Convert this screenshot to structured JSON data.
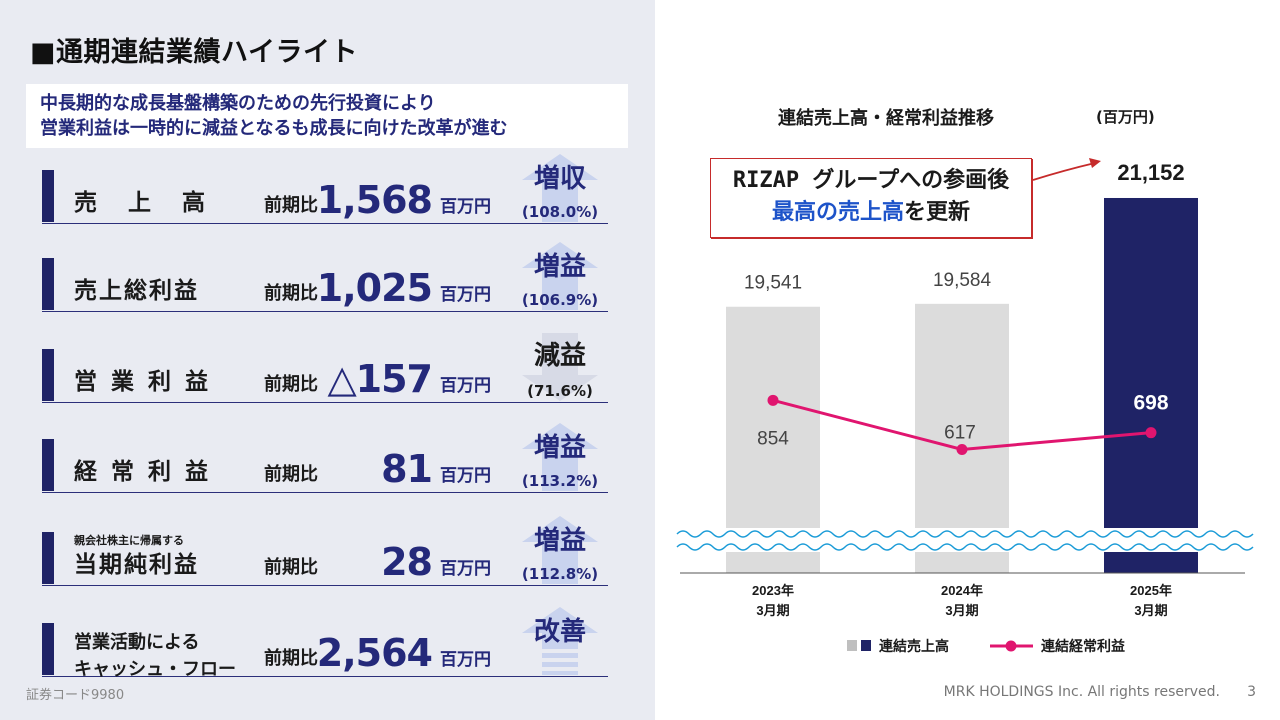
{
  "page_title": "■通期連結業績ハイライト",
  "subtitle": {
    "line1": "中長期的な成長基盤構築のための先行投資により",
    "line2": "営業利益は一時的に減益となるも成長に向けた改革が進む"
  },
  "comparison_label": "前期比",
  "unit_label": "百万円",
  "rows": [
    {
      "label": "売上高",
      "value": "1,568",
      "badge": "増収",
      "pct": "(108.0%)",
      "trend": "up"
    },
    {
      "label": "売上総利益",
      "value": "1,025",
      "badge": "増益",
      "pct": "(106.9%)",
      "trend": "up"
    },
    {
      "label": "営業利益",
      "value": "△157",
      "badge": "減益",
      "pct": "(71.6%)",
      "trend": "down"
    },
    {
      "label": "経常利益",
      "value": "81",
      "badge": "増益",
      "pct": "(113.2%)",
      "trend": "up"
    },
    {
      "label_small": "親会社株主に帰属する",
      "label": "当期純利益",
      "value": "28",
      "badge": "増益",
      "pct": "(112.8%)",
      "trend": "up"
    },
    {
      "label_line1": "営業活動による",
      "label_line2": "キャッシュ・フロー",
      "value": "2,564",
      "badge": "改善",
      "pct": "",
      "trend": "up"
    }
  ],
  "footer": {
    "code": "証券コード9980",
    "copyright": "MRK HOLDINGS Inc. All rights reserved.",
    "page": "3"
  },
  "callout": {
    "line1": "RIZAP グループへの参画後",
    "line2_highlight": "最高の売上高",
    "line2_rest": "を更新"
  },
  "colors": {
    "navy": "#1f2366",
    "bar_gray": "#dcdcdc",
    "line_pink": "#e0156f",
    "wave_blue": "#1a9bd7"
  },
  "chart_data": {
    "type": "bar",
    "title": "連結売上高・経常利益推移",
    "unit": "(百万円)",
    "categories": [
      [
        "2023年",
        "3月期"
      ],
      [
        "2024年",
        "3月期"
      ],
      [
        "2025年",
        "3月期"
      ]
    ],
    "series": [
      {
        "name": "連結売上高",
        "type": "bar",
        "values": [
          19541,
          19584,
          21152
        ],
        "labels": [
          "19,541",
          "19,584",
          "21,152"
        ]
      },
      {
        "name": "連結経常利益",
        "type": "line",
        "values": [
          854,
          617,
          698
        ],
        "labels": [
          "854",
          "617",
          "698"
        ]
      }
    ],
    "axis_break": true,
    "legend_position": "bottom"
  }
}
